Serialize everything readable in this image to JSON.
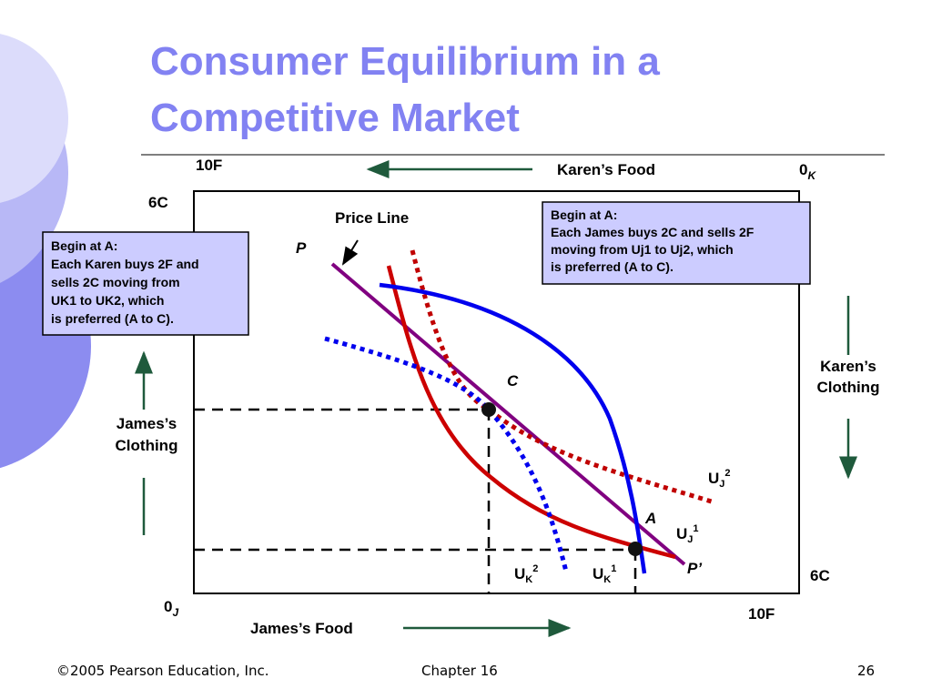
{
  "title_lines": [
    "Consumer Equilibrium in a",
    "Competitive Market"
  ],
  "top_food": "10F",
  "karen_food": "Karen’s Food",
  "karen_origin": {
    "main": "0",
    "sub": "K"
  },
  "top_left_clothing": "6C",
  "price_line": "Price Line",
  "p_label": "P",
  "p_prime_label": "P’",
  "point_c": "C",
  "point_a": "A",
  "left_box": [
    "Begin at A:",
    "Each Karen buys 2F and",
    "sells 2C  moving from",
    "UK1 to UK2, which",
    "is preferred (A to C)."
  ],
  "right_box": [
    "Begin at A:",
    "Each James buys 2C and sells 2F",
    "moving from Uj1 to Uj2, which",
    "is preferred (A to C)."
  ],
  "karen_clothing": [
    "Karen’s",
    "Clothing"
  ],
  "james_clothing": [
    "James’s",
    "Clothing"
  ],
  "uj2": {
    "base": "U",
    "sub": "J",
    "sup": "2"
  },
  "uj1": {
    "base": "U",
    "sub": "J",
    "sup": "1"
  },
  "uk2": {
    "base": "U",
    "sub": "K",
    "sup": "2"
  },
  "uk1": {
    "base": "U",
    "sub": "K",
    "sup": "1"
  },
  "bottom_right_clothing": "6C",
  "james_origin": {
    "main": "0",
    "sub": "J"
  },
  "bottom_food": "10F",
  "james_food": "James’s Food",
  "footer": {
    "copyright": "©2005 Pearson Education, Inc.",
    "chapter": "Chapter 16",
    "page": "26"
  }
}
